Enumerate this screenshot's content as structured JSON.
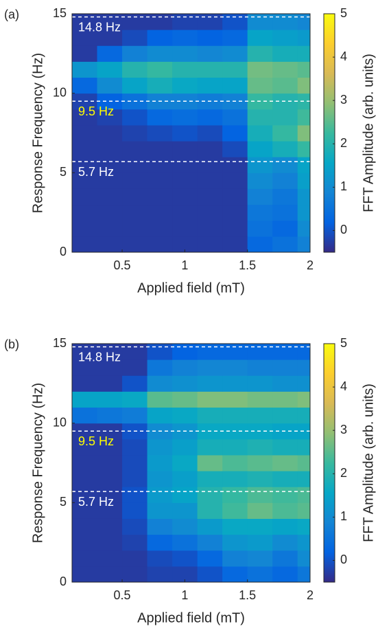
{
  "chart_data": [
    {
      "type": "heatmap",
      "panel_label": "(a)",
      "xlabel": "Applied field (mT)",
      "ylabel": "Response Frequency (Hz)",
      "colorbar_label": "FFT Amplitude (arb. units)",
      "colormap": "parula",
      "clim": [
        -0.5,
        5
      ],
      "cticks": [
        0,
        1,
        2,
        3,
        4,
        5
      ],
      "xlim": [
        0.1,
        2
      ],
      "ylim": [
        0,
        15
      ],
      "xticks": [
        0.5,
        1,
        1.5,
        2
      ],
      "yticks": [
        0,
        5,
        10,
        15
      ],
      "xbins": [
        0.1,
        0.3,
        0.5,
        0.7,
        0.9,
        1.1,
        1.3,
        1.5,
        1.7,
        1.9,
        2.0
      ],
      "ybins": [
        0,
        1,
        2,
        3,
        4,
        5,
        6,
        7,
        8,
        9,
        10,
        11,
        12,
        13,
        14,
        15
      ],
      "z": [
        [
          -0.3,
          -0.3,
          -0.3,
          -0.3,
          -0.3,
          -0.3,
          -0.3,
          0.3,
          0.5,
          0.8
        ],
        [
          -0.3,
          -0.3,
          -0.3,
          -0.3,
          -0.3,
          -0.3,
          -0.3,
          0.5,
          0.3,
          1
        ],
        [
          -0.3,
          -0.3,
          -0.3,
          -0.3,
          -0.3,
          -0.3,
          -0.3,
          0.6,
          0.5,
          1.2
        ],
        [
          -0.3,
          -0.3,
          -0.3,
          -0.3,
          -0.3,
          -0.3,
          -0.3,
          0.8,
          0.6,
          1.2
        ],
        [
          -0.3,
          -0.3,
          -0.3,
          -0.3,
          -0.3,
          -0.3,
          -0.3,
          1,
          0.8,
          1.4
        ],
        [
          -0.3,
          -0.3,
          -0.3,
          -0.3,
          -0.3,
          -0.3,
          -0.3,
          1.2,
          1,
          1.5
        ],
        [
          -0.3,
          -0.3,
          -0.3,
          -0.3,
          -0.3,
          -0.3,
          -0.1,
          1.5,
          1.8,
          2.2
        ],
        [
          -0.3,
          -0.3,
          -0.2,
          -0.1,
          0,
          -0.1,
          0.2,
          1.8,
          2.2,
          2.8
        ],
        [
          -0.3,
          -0.2,
          0,
          0.3,
          0.4,
          0.3,
          0.5,
          2,
          2,
          2.3
        ],
        [
          -0.2,
          0.2,
          0.5,
          0.8,
          0.8,
          0.7,
          0.8,
          2.2,
          2,
          2.1
        ],
        [
          0.3,
          1,
          1.5,
          1.8,
          1.6,
          1.5,
          1.5,
          2.6,
          2.5,
          2.8
        ],
        [
          1.2,
          1.5,
          2,
          2.2,
          2,
          2,
          2,
          2.7,
          2.6,
          2.5
        ],
        [
          -0.3,
          0.3,
          0.8,
          1,
          1,
          0.9,
          1,
          2,
          1.8,
          1.8
        ],
        [
          -0.3,
          -0.3,
          -0.1,
          0.2,
          0.3,
          0.2,
          0.3,
          1.5,
          1.4,
          1.3
        ],
        [
          -0.3,
          -0.3,
          -0.3,
          -0.3,
          -0.2,
          -0.2,
          0,
          1,
          1,
          0.9
        ]
      ],
      "annotations": [
        {
          "value": 14.8,
          "label": "14.8 Hz",
          "color": "#ffffff"
        },
        {
          "value": 9.5,
          "label": "9.5 Hz",
          "color": "#ffff00"
        },
        {
          "value": 5.7,
          "label": "5.7 Hz",
          "color": "#ffffff"
        }
      ]
    },
    {
      "type": "heatmap",
      "panel_label": "(b)",
      "xlabel": "Applied field (mT)",
      "ylabel": "Response Frequency (Hz)",
      "colorbar_label": "FFT Amplitude (arb. units)",
      "colormap": "parula",
      "clim": [
        -0.5,
        5
      ],
      "cticks": [
        0,
        1,
        2,
        3,
        4,
        5
      ],
      "xlim": [
        0.1,
        2
      ],
      "ylim": [
        0,
        15
      ],
      "xticks": [
        0.5,
        1,
        1.5,
        2
      ],
      "yticks": [
        0,
        5,
        10,
        15
      ],
      "xbins": [
        0.1,
        0.3,
        0.5,
        0.7,
        0.9,
        1.1,
        1.3,
        1.5,
        1.7,
        1.9,
        2.0
      ],
      "ybins": [
        0,
        1,
        2,
        3,
        4,
        5,
        6,
        7,
        8,
        9,
        10,
        11,
        12,
        13,
        14,
        15
      ],
      "z": [
        [
          -0.3,
          -0.3,
          -0.3,
          -0.2,
          -0.2,
          0,
          0.3,
          0.5,
          0.3,
          0.6
        ],
        [
          -0.3,
          -0.3,
          -0.3,
          -0.1,
          0,
          0.3,
          0.8,
          0.9,
          0.6,
          1
        ],
        [
          -0.3,
          -0.3,
          -0.2,
          0.3,
          0.5,
          0.8,
          1.2,
          1.3,
          1,
          1.2
        ],
        [
          -0.3,
          -0.3,
          -0.1,
          0.8,
          1,
          1.3,
          1.6,
          1.6,
          1.5,
          1.6
        ],
        [
          -0.3,
          -0.3,
          0,
          1.2,
          1.2,
          2,
          2.3,
          2.6,
          2.4,
          2.5
        ],
        [
          -0.3,
          -0.3,
          0,
          1.3,
          1.5,
          2,
          2.2,
          2.4,
          2.3,
          2.4
        ],
        [
          -0.3,
          -0.3,
          -0.1,
          1.2,
          1.4,
          1.8,
          1.8,
          1.9,
          1.8,
          1.8
        ],
        [
          -0.3,
          -0.3,
          -0.1,
          1.3,
          1.6,
          2.6,
          2.4,
          2.5,
          2.6,
          2.5
        ],
        [
          -0.3,
          -0.3,
          -0.1,
          1.2,
          1.4,
          1.8,
          1.8,
          1.9,
          1.8,
          1.8
        ],
        [
          -0.3,
          -0.3,
          0,
          1,
          1.2,
          1.6,
          1.6,
          1.6,
          1.5,
          1.5
        ],
        [
          0.5,
          0.6,
          0.7,
          1.5,
          1.6,
          1.8,
          1.8,
          1.8,
          1.8,
          1.8
        ],
        [
          1.5,
          1.5,
          1.6,
          2.5,
          2.6,
          2.8,
          2.8,
          2.7,
          2.7,
          2.8
        ],
        [
          -0.3,
          -0.3,
          0,
          1,
          1.1,
          1.2,
          1.2,
          1.2,
          1.1,
          1.1
        ],
        [
          -0.3,
          -0.3,
          -0.3,
          0.6,
          0.8,
          0.9,
          0.9,
          0.8,
          0.8,
          0.8
        ],
        [
          -0.3,
          -0.3,
          -0.3,
          0,
          0.2,
          0.3,
          0.3,
          0.3,
          0.3,
          0.3
        ]
      ],
      "annotations": [
        {
          "value": 14.8,
          "label": "14.8 Hz",
          "color": "#ffffff"
        },
        {
          "value": 9.5,
          "label": "9.5 Hz",
          "color": "#ffff00"
        },
        {
          "value": 5.7,
          "label": "5.7 Hz",
          "color": "#ffffff"
        }
      ]
    }
  ]
}
